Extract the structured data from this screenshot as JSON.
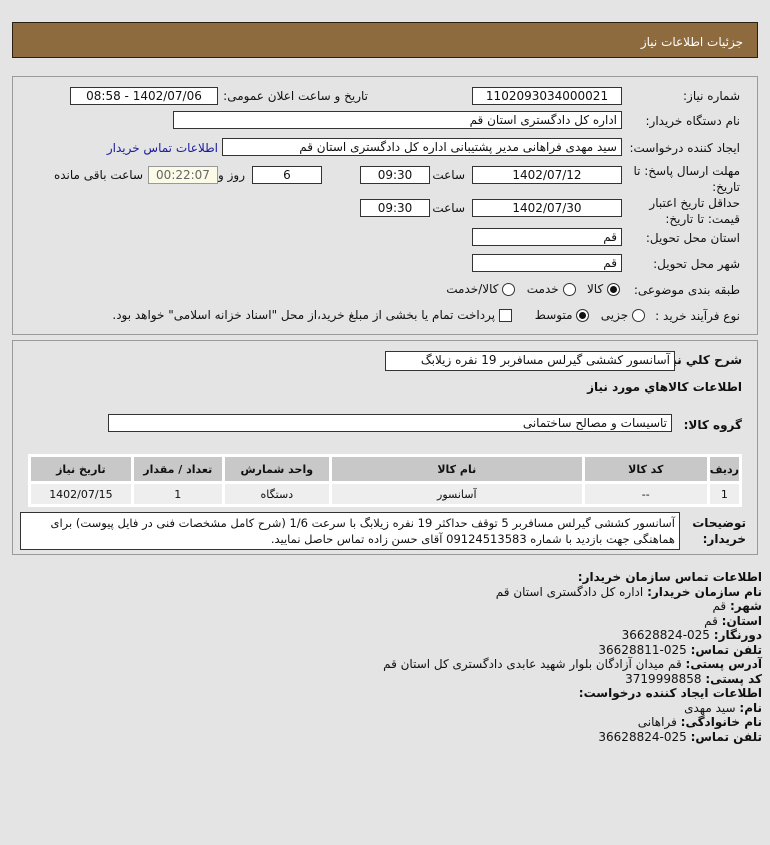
{
  "header": {
    "title": "جزئیات اطلاعات نیاز"
  },
  "form": {
    "need_number_label": "شماره نیاز:",
    "need_number": "1102093034000021",
    "announce_label": "تاریخ و ساعت اعلان عمومی:",
    "announce_value": "1402/07/06 - 08:58",
    "buyer_label": "نام دستگاه خریدار:",
    "buyer": "اداره کل دادگستری استان قم",
    "creator_label": "ایجاد کننده درخواست:",
    "creator": "سید مهدی فراهانی مدیر پشتیبانی اداره کل دادگستری استان قم",
    "contact_link": "اطلاعات تماس خریدار",
    "deadline_label": "مهلت ارسال پاسخ: تا تاریخ:",
    "deadline_date": "1402/07/12",
    "time_label": "ساعت",
    "deadline_time": "09:30",
    "days": "6",
    "days_label": "روز و",
    "remaining": "00:22:07",
    "remaining_label": "ساعت باقی مانده",
    "validity_label": "حداقل تاریخ اعتبار قیمت: تا تاریخ:",
    "validity_date": "1402/07/30",
    "validity_time": "09:30",
    "province_label": "استان محل تحویل:",
    "province": "قم",
    "city_label": "شهر محل تحویل:",
    "city": "قم",
    "category_label": "طبقه بندی موضوعی:",
    "category_options": [
      "کالا",
      "خدمت",
      "کالا/خدمت"
    ],
    "process_label": "نوع فرآیند خرید :",
    "process_options": [
      "جزیی",
      "متوسط"
    ],
    "payment_note": "پرداخت تمام یا بخشی از مبلغ خرید،از محل \"اسناد خزانه اسلامی\" خواهد بود."
  },
  "summary": {
    "desc_label": "شرح کلي نیاز:",
    "desc": "آسانسور کششی گیرلس مسافربر 19 نفره زیلابگ",
    "goods_heading": "اطلاعات کالاهاي مورد نیاز",
    "group_label": "گروه کالا:",
    "group": "تاسیسات و مصالح ساختمانی",
    "table": {
      "headers": [
        "ردیف",
        "کد کالا",
        "نام کالا",
        "واحد شمارش",
        "تعداد / مقدار",
        "تاریخ نیاز"
      ],
      "rows": [
        [
          "1",
          "--",
          "آسانسور",
          "دستگاه",
          "1",
          "1402/07/15"
        ]
      ]
    },
    "notes_label": "توضیحات خریدار:",
    "notes": "آسانسور کششی گیرلس مسافربر 5 توقف حداکثر 19 نفره زیلابگ با سرعت 1/6 (شرح کامل مشخصات فنی در فایل پیوست) برای هماهنگی جهت بازدید با شماره 09124513583 آقای حسن زاده تماس حاصل نمایید."
  },
  "contact": {
    "heading": "اطلاعات تماس سازمان خریدار:",
    "org_label": "نام سازمان خریدار:",
    "org": "اداره کل دادگستری استان قم",
    "city_label": "شهر:",
    "city": "قم",
    "province_label": "استان:",
    "province": "قم",
    "fax_label": "دورنگار:",
    "fax": "025-36628824",
    "phone_label": "تلفن تماس:",
    "phone": "025-36628811",
    "address_label": "آدرس پستی:",
    "address": "قم میدان آزادگان بلوار شهید عابدی دادگستری کل استان قم",
    "postal_label": "کد پستی:",
    "postal": "3719998858",
    "creator_heading": "اطلاعات ایجاد کننده درخواست:",
    "name_label": "نام:",
    "name": "سید مهدی",
    "family_label": "نام خانوادگی:",
    "family": "فراهانی",
    "creator_phone_label": "تلفن تماس:",
    "creator_phone": "025-36628824"
  }
}
